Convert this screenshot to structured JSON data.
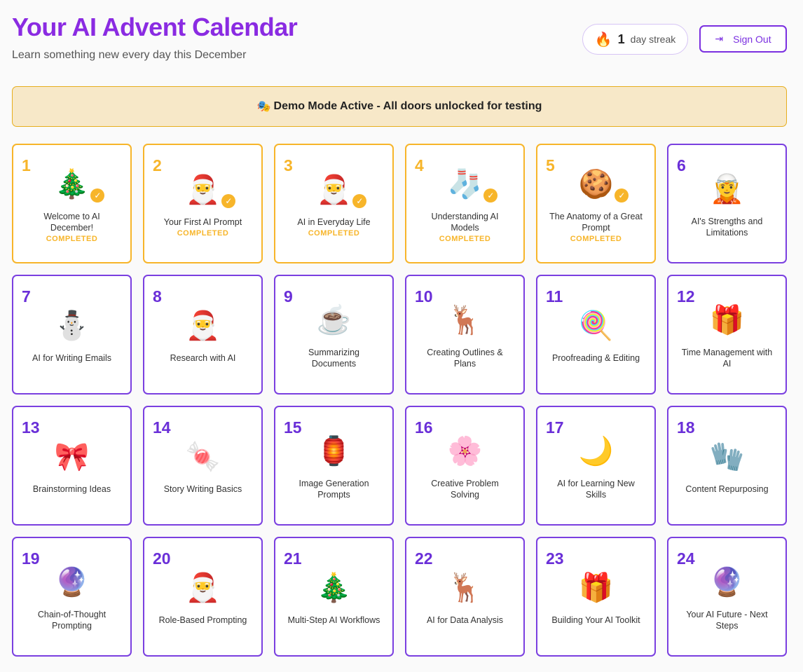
{
  "header": {
    "title": "Your AI Advent Calendar",
    "subtitle": "Learn something new every day this December",
    "streak_icon": "flame-icon",
    "streak_count": "1",
    "streak_label": "day streak",
    "signout_icon": "sign-out-icon",
    "signout_label": "Sign Out"
  },
  "banner": {
    "icon": "🎭",
    "text": "Demo Mode Active - All doors unlocked for testing"
  },
  "colors": {
    "accent": "#7a3fe0",
    "title": "#8a2be2",
    "completed": "#f7b52a",
    "banner_bg": "#f7e8c8"
  },
  "days": [
    {
      "num": "1",
      "title": "Welcome to AI December!",
      "emoji": "🎄",
      "status": "COMPLETED"
    },
    {
      "num": "2",
      "title": "Your First AI Prompt",
      "emoji": "🎅",
      "status": "COMPLETED"
    },
    {
      "num": "3",
      "title": "AI in Everyday Life",
      "emoji": "🎅",
      "status": "COMPLETED"
    },
    {
      "num": "4",
      "title": "Understanding AI Models",
      "emoji": "🧦",
      "status": "COMPLETED"
    },
    {
      "num": "5",
      "title": "The Anatomy of a Great Prompt",
      "emoji": "🍪",
      "status": "COMPLETED"
    },
    {
      "num": "6",
      "title": "AI's Strengths and Limitations",
      "emoji": "🧝"
    },
    {
      "num": "7",
      "title": "AI for Writing Emails",
      "emoji": "⛄"
    },
    {
      "num": "8",
      "title": "Research with AI",
      "emoji": "🎅"
    },
    {
      "num": "9",
      "title": "Summarizing Documents",
      "emoji": "☕"
    },
    {
      "num": "10",
      "title": "Creating Outlines & Plans",
      "emoji": "🦌"
    },
    {
      "num": "11",
      "title": "Proofreading & Editing",
      "emoji": "🍭"
    },
    {
      "num": "12",
      "title": "Time Management with AI",
      "emoji": "🎁"
    },
    {
      "num": "13",
      "title": "Brainstorming Ideas",
      "emoji": "🎀"
    },
    {
      "num": "14",
      "title": "Story Writing Basics",
      "emoji": "🍬"
    },
    {
      "num": "15",
      "title": "Image Generation Prompts",
      "emoji": "🏮"
    },
    {
      "num": "16",
      "title": "Creative Problem Solving",
      "emoji": "🌸"
    },
    {
      "num": "17",
      "title": "AI for Learning New Skills",
      "emoji": "🌙"
    },
    {
      "num": "18",
      "title": "Content Repurposing",
      "emoji": "🧤"
    },
    {
      "num": "19",
      "title": "Chain-of-Thought Prompting",
      "emoji": "🔮"
    },
    {
      "num": "20",
      "title": "Role-Based Prompting",
      "emoji": "🎅"
    },
    {
      "num": "21",
      "title": "Multi-Step AI Workflows",
      "emoji": "🎄"
    },
    {
      "num": "22",
      "title": "AI for Data Analysis",
      "emoji": "🦌"
    },
    {
      "num": "23",
      "title": "Building Your AI Toolkit",
      "emoji": "🎁"
    },
    {
      "num": "24",
      "title": "Your AI Future - Next Steps",
      "emoji": "🔮"
    }
  ]
}
